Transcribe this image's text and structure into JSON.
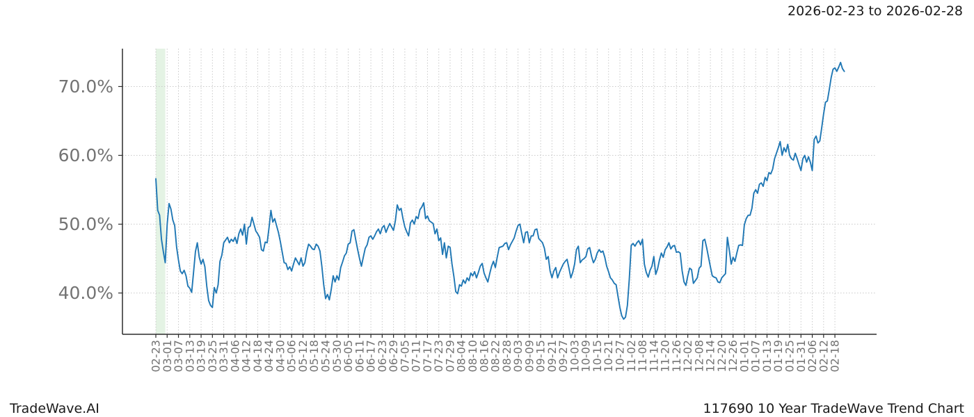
{
  "header": {
    "date_range": "2026-02-23 to 2026-02-28"
  },
  "footer": {
    "brand": "TradeWave.AI",
    "title": "117690 10 Year TradeWave Trend Chart"
  },
  "chart_data": {
    "type": "line",
    "title": "",
    "xlabel": "",
    "ylabel": "",
    "grid": true,
    "series_name": "trend",
    "line_color": "#1f77b4",
    "grid_color": "#c9c9c9",
    "spine_color": "#2b2b2b",
    "tick_label_color": "#737373",
    "y_ticks": [
      40,
      50,
      60,
      70
    ],
    "y_tick_labels": [
      "40.0%",
      "50.0%",
      "60.0%",
      "70.0%"
    ],
    "ylim": [
      34.0,
      75.5
    ],
    "xlim_days": [
      -17.7,
      382.1
    ],
    "x_tick_interval_days": 6,
    "x_tick_labels": [
      "02-23",
      "03-01",
      "03-07",
      "03-13",
      "03-19",
      "03-25",
      "03-31",
      "04-06",
      "04-12",
      "04-18",
      "04-24",
      "04-30",
      "05-06",
      "05-12",
      "05-18",
      "05-24",
      "05-30",
      "06-05",
      "06-11",
      "06-17",
      "06-23",
      "06-29",
      "07-05",
      "07-11",
      "07-17",
      "07-23",
      "07-29",
      "08-04",
      "08-10",
      "08-16",
      "08-22",
      "08-28",
      "09-03",
      "09-09",
      "09-15",
      "09-21",
      "09-27",
      "10-03",
      "10-09",
      "10-15",
      "10-21",
      "10-27",
      "11-02",
      "11-08",
      "11-14",
      "11-20",
      "11-26",
      "12-02",
      "12-08",
      "12-14",
      "12-20",
      "12-26",
      "01-01",
      "01-07",
      "01-13",
      "01-19",
      "01-25",
      "01-31",
      "02-06",
      "02-12",
      "02-18"
    ],
    "highlight_band": {
      "start_label": "02-23",
      "end_label": "02-28",
      "start_day": 0,
      "end_day": 5,
      "color": "#2ca02c",
      "opacity": 0.13
    },
    "values": [
      56.6,
      52.0,
      51.3,
      47.8,
      46.0,
      44.4,
      50.0,
      53.0,
      52.2,
      50.6,
      49.8,
      46.7,
      44.8,
      43.2,
      42.8,
      43.3,
      42.5,
      41.0,
      40.7,
      40.1,
      43.0,
      46.0,
      47.3,
      45.2,
      44.2,
      44.9,
      43.8,
      41.0,
      38.9,
      38.2,
      37.9,
      40.8,
      40.0,
      41.2,
      44.6,
      45.5,
      47.3,
      47.7,
      48.1,
      47.3,
      47.8,
      47.5,
      48.1,
      47.2,
      48.6,
      49.3,
      48.4,
      50.0,
      47.1,
      49.5,
      49.7,
      51.0,
      50.0,
      49.0,
      48.6,
      48.1,
      46.3,
      46.1,
      47.4,
      47.3,
      49.5,
      52.0,
      50.3,
      50.8,
      49.8,
      48.8,
      47.5,
      45.9,
      44.4,
      44.3,
      43.4,
      43.8,
      43.2,
      44.2,
      45.1,
      44.6,
      44.1,
      45.1,
      43.9,
      44.4,
      46.0,
      47.1,
      46.8,
      46.4,
      46.3,
      47.1,
      46.8,
      46.1,
      43.9,
      41.2,
      39.2,
      39.8,
      39.0,
      40.5,
      42.5,
      41.6,
      42.5,
      41.9,
      43.7,
      44.5,
      45.4,
      45.8,
      47.1,
      47.3,
      49.0,
      49.2,
      47.7,
      46.3,
      45.0,
      43.9,
      45.2,
      46.5,
      47.0,
      48.1,
      48.3,
      47.8,
      48.3,
      48.9,
      49.3,
      48.6,
      49.5,
      49.8,
      48.8,
      49.5,
      50.1,
      49.6,
      49.1,
      50.5,
      52.8,
      52.0,
      52.3,
      50.8,
      49.6,
      48.9,
      48.3,
      50.2,
      50.6,
      50.0,
      51.1,
      50.8,
      52.1,
      52.5,
      53.1,
      50.8,
      51.2,
      50.5,
      50.3,
      50.1,
      48.6,
      49.3,
      47.6,
      48.0,
      45.6,
      47.3,
      45.1,
      46.8,
      46.6,
      44.2,
      42.4,
      40.2,
      39.9,
      41.2,
      41.0,
      41.9,
      41.4,
      42.2,
      41.8,
      42.9,
      42.5,
      43.1,
      42.2,
      43.0,
      43.9,
      44.3,
      42.9,
      42.2,
      41.6,
      42.8,
      43.9,
      44.6,
      43.7,
      45.2,
      46.6,
      46.7,
      46.8,
      47.2,
      47.3,
      46.3,
      47.0,
      47.5,
      48.0,
      49.0,
      49.8,
      50.0,
      48.6,
      47.3,
      48.8,
      48.9,
      47.3,
      48.3,
      48.3,
      49.2,
      49.3,
      47.9,
      47.6,
      47.3,
      46.5,
      44.9,
      45.3,
      43.2,
      42.2,
      43.2,
      43.7,
      42.2,
      43.0,
      43.6,
      44.2,
      44.6,
      44.9,
      43.6,
      42.2,
      43.0,
      44.2,
      46.3,
      46.8,
      44.4,
      44.8,
      45.0,
      45.3,
      46.4,
      46.6,
      45.3,
      44.4,
      44.9,
      45.8,
      46.3,
      45.9,
      46.1,
      45.2,
      43.9,
      43.1,
      42.2,
      41.9,
      41.4,
      41.2,
      39.5,
      37.9,
      36.7,
      36.2,
      36.5,
      38.2,
      42.0,
      46.9,
      47.2,
      46.8,
      47.3,
      47.6,
      47.0,
      47.8,
      44.2,
      43.0,
      42.3,
      43.3,
      43.9,
      45.3,
      42.7,
      43.5,
      44.8,
      45.8,
      45.2,
      46.3,
      46.7,
      47.3,
      46.4,
      46.8,
      46.9,
      45.9,
      46.0,
      45.8,
      43.2,
      41.6,
      41.1,
      42.5,
      43.6,
      43.4,
      41.4,
      41.8,
      42.2,
      43.6,
      43.9,
      47.6,
      47.8,
      46.6,
      45.2,
      43.8,
      42.5,
      42.3,
      42.2,
      41.6,
      41.5,
      42.2,
      42.5,
      42.8,
      48.1,
      46.3,
      44.2,
      45.2,
      44.6,
      45.8,
      46.9,
      47.0,
      46.9,
      49.9,
      50.8,
      51.3,
      51.3,
      52.3,
      54.5,
      55.0,
      54.5,
      55.8,
      56.0,
      55.5,
      56.8,
      56.3,
      57.5,
      57.3,
      58.0,
      59.5,
      60.3,
      61.1,
      62.0,
      60.0,
      61.1,
      60.5,
      61.6,
      60.0,
      59.5,
      59.3,
      60.3,
      59.5,
      58.6,
      57.8,
      59.5,
      60.0,
      59.0,
      59.8,
      59.0,
      57.8,
      62.3,
      62.8,
      61.8,
      62.1,
      64.0,
      66.0,
      67.7,
      67.9,
      69.5,
      71.3,
      72.5,
      72.7,
      72.2,
      72.8,
      73.5,
      72.6,
      72.2
    ]
  }
}
